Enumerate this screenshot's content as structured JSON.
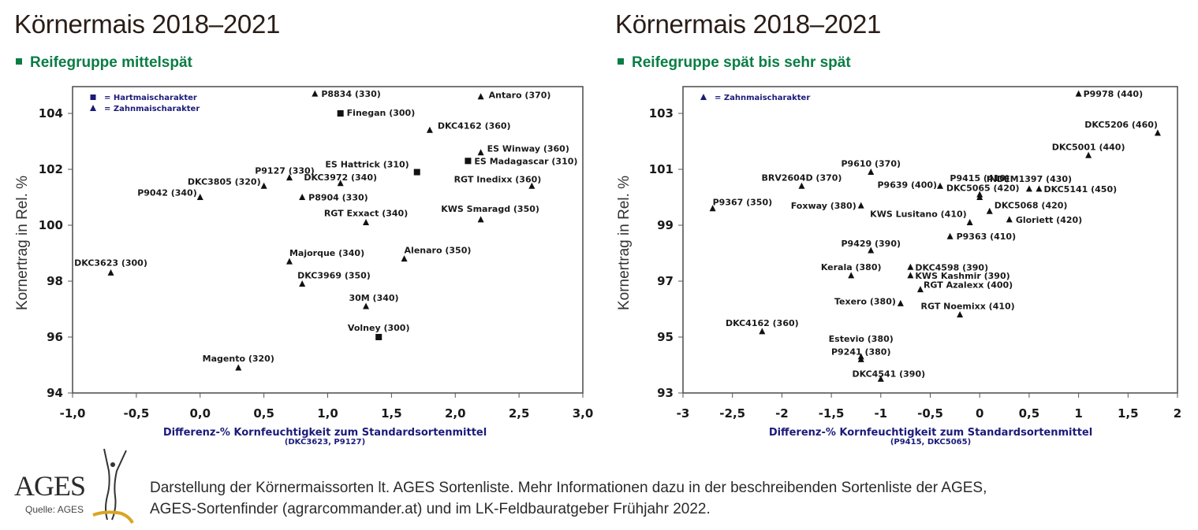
{
  "page": {
    "footer_lines": [
      "Darstellung der Körnermaissorten lt. AGES Sortenliste. Mehr Informationen dazu in der beschreibenden Sortenliste der AGES,",
      "AGES-Sortenfinder (agrarcommander.at) und im LK-Feldbauratgeber Frühjahr 2022."
    ],
    "logo": {
      "text": "AGES",
      "source": "Quelle: AGES"
    },
    "colors": {
      "title": "#2a1d17",
      "subtitle": "#0a7d45",
      "axis_label": "#1b1b7a",
      "marker": "#111111",
      "legend_marker": "#1b1b7a"
    }
  },
  "chart_data": [
    {
      "type": "scatter",
      "title": "Körnermais 2018–2021",
      "subtitle": "Reifegruppe mittelspät",
      "xlabel": "Differenz-% Kornfeuchtigkeit zum Standardsortenmittel",
      "xlabel_sub": "(DKC3623, P9127)",
      "ylabel": "Kornertrag in Rel. %",
      "xlim": [
        -1.0,
        3.0
      ],
      "ylim": [
        94,
        105
      ],
      "xticks": [
        -1.0,
        -0.5,
        0.0,
        0.5,
        1.0,
        1.5,
        2.0,
        2.5,
        3.0
      ],
      "xtick_labels": [
        "-1,0",
        "-0,5",
        "0,0",
        "0,5",
        "1,0",
        "1,5",
        "2,0",
        "2,5",
        "3,0"
      ],
      "yticks": [
        94,
        96,
        98,
        100,
        102,
        104
      ],
      "ytick_labels": [
        "94",
        "96",
        "98",
        "100",
        "102",
        "104"
      ],
      "grid": false,
      "legend_position": "top-left",
      "legend": [
        {
          "marker": "square",
          "label": "= Hartmaischarakter"
        },
        {
          "marker": "triangle",
          "label": "= Zahnmaischarakter"
        }
      ],
      "points": [
        {
          "label": "P8834 (330)",
          "x": 0.9,
          "y": 104.7,
          "marker": "triangle"
        },
        {
          "label": "Finegan (300)",
          "x": 1.1,
          "y": 104.0,
          "marker": "square"
        },
        {
          "label": "Antaro (370)",
          "x": 2.2,
          "y": 104.6,
          "marker": "triangle"
        },
        {
          "label": "DKC4162 (360)",
          "x": 1.8,
          "y": 103.4,
          "marker": "triangle"
        },
        {
          "label": "ES Winway (360)",
          "x": 2.2,
          "y": 102.6,
          "marker": "triangle"
        },
        {
          "label": "ES Madagascar (310)",
          "x": 2.1,
          "y": 102.3,
          "marker": "square"
        },
        {
          "label": "ES Hattrick (310)",
          "x": 1.7,
          "y": 101.9,
          "marker": "square"
        },
        {
          "label": "RGT Inedixx (360)",
          "x": 2.6,
          "y": 101.4,
          "marker": "triangle"
        },
        {
          "label": "P9127 (330)",
          "x": 0.7,
          "y": 101.7,
          "marker": "triangle"
        },
        {
          "label": "DKC3805 (320)",
          "x": 0.5,
          "y": 101.4,
          "marker": "triangle"
        },
        {
          "label": "DKC3972 (340)",
          "x": 1.1,
          "y": 101.5,
          "marker": "triangle"
        },
        {
          "label": "P9042 (340)",
          "x": 0.0,
          "y": 101.0,
          "marker": "triangle"
        },
        {
          "label": "P8904 (330)",
          "x": 0.8,
          "y": 101.0,
          "marker": "triangle"
        },
        {
          "label": "RGT Exxact (340)",
          "x": 1.3,
          "y": 100.1,
          "marker": "triangle"
        },
        {
          "label": "KWS Smaragd (350)",
          "x": 2.2,
          "y": 100.2,
          "marker": "triangle"
        },
        {
          "label": "DKC3623 (300)",
          "x": -0.7,
          "y": 98.3,
          "marker": "triangle"
        },
        {
          "label": "Majorque (340)",
          "x": 0.7,
          "y": 98.7,
          "marker": "triangle"
        },
        {
          "label": "Alenaro (350)",
          "x": 1.6,
          "y": 98.8,
          "marker": "triangle"
        },
        {
          "label": "DKC3969 (350)",
          "x": 0.8,
          "y": 97.9,
          "marker": "triangle"
        },
        {
          "label": "30M (340)",
          "x": 1.3,
          "y": 97.1,
          "marker": "triangle"
        },
        {
          "label": "Volney (300)",
          "x": 1.4,
          "y": 96.0,
          "marker": "square"
        },
        {
          "label": "Magento (320)",
          "x": 0.3,
          "y": 94.9,
          "marker": "triangle"
        }
      ]
    },
    {
      "type": "scatter",
      "title": "Körnermais 2018–2021",
      "subtitle": "Reifegruppe spät bis sehr spät",
      "xlabel": "Differenz-% Kornfeuchtigkeit zum Standardsortenmittel",
      "xlabel_sub": "(P9415, DKC5065)",
      "ylabel": "Kornertrag in Rel. %",
      "xlim": [
        -3,
        2
      ],
      "ylim": [
        93,
        104
      ],
      "xticks": [
        -3,
        -2.5,
        -2,
        -1.5,
        -1,
        -0.5,
        0,
        0.5,
        1,
        1.5,
        2
      ],
      "xtick_labels": [
        "-3",
        "-2,5",
        "-2",
        "-1,5",
        "-1",
        "-0,5",
        "0",
        "0,5",
        "1",
        "1,5",
        "2"
      ],
      "yticks": [
        93,
        95,
        97,
        99,
        101,
        103
      ],
      "ytick_labels": [
        "93",
        "95",
        "97",
        "99",
        "101",
        "103"
      ],
      "grid": false,
      "legend_position": "top-left",
      "legend": [
        {
          "marker": "triangle",
          "label": "= Zahnmaischarakter"
        }
      ],
      "points": [
        {
          "label": "P9978 (440)",
          "x": 1.0,
          "y": 103.7,
          "marker": "triangle"
        },
        {
          "label": "DKC5206 (460)",
          "x": 1.8,
          "y": 102.3,
          "marker": "triangle"
        },
        {
          "label": "DKC5001 (440)",
          "x": 1.1,
          "y": 101.5,
          "marker": "triangle"
        },
        {
          "label": "INDEM1397 (430)",
          "x": 0.5,
          "y": 100.3,
          "marker": "triangle"
        },
        {
          "label": "DKC5141 (450)",
          "x": 0.6,
          "y": 100.3,
          "marker": "triangle"
        },
        {
          "label": "P9415 (410)",
          "x": 0.0,
          "y": 100.1,
          "marker": "triangle"
        },
        {
          "label": "DKC5065 (420)",
          "x": 0.0,
          "y": 100.0,
          "marker": "triangle"
        },
        {
          "label": "P9639 (400)",
          "x": -0.4,
          "y": 100.4,
          "marker": "triangle"
        },
        {
          "label": "DKC5068 (420)",
          "x": 0.1,
          "y": 99.5,
          "marker": "triangle"
        },
        {
          "label": "Gloriett (420)",
          "x": 0.3,
          "y": 99.2,
          "marker": "triangle"
        },
        {
          "label": "KWS Lusitano (410)",
          "x": -0.1,
          "y": 99.1,
          "marker": "triangle"
        },
        {
          "label": "P9363 (410)",
          "x": -0.3,
          "y": 98.6,
          "marker": "triangle"
        },
        {
          "label": "P9610 (370)",
          "x": -1.1,
          "y": 100.9,
          "marker": "triangle"
        },
        {
          "label": "BRV2604D (370)",
          "x": -1.8,
          "y": 100.4,
          "marker": "triangle"
        },
        {
          "label": "P9367 (350)",
          "x": -2.7,
          "y": 99.6,
          "marker": "triangle"
        },
        {
          "label": "Foxway (380)",
          "x": -1.2,
          "y": 99.7,
          "marker": "triangle"
        },
        {
          "label": "P9429 (390)",
          "x": -1.1,
          "y": 98.1,
          "marker": "triangle"
        },
        {
          "label": "Kerala (380)",
          "x": -1.3,
          "y": 97.2,
          "marker": "triangle"
        },
        {
          "label": "DKC4598 (390)",
          "x": -0.7,
          "y": 97.5,
          "marker": "triangle"
        },
        {
          "label": "KWS Kashmir (390)",
          "x": -0.7,
          "y": 97.2,
          "marker": "triangle"
        },
        {
          "label": "RGT Azalexx (400)",
          "x": -0.6,
          "y": 96.7,
          "marker": "triangle"
        },
        {
          "label": "Texero (380)",
          "x": -0.8,
          "y": 96.2,
          "marker": "triangle"
        },
        {
          "label": "RGT Noemixx (410)",
          "x": -0.2,
          "y": 95.8,
          "marker": "triangle"
        },
        {
          "label": "DKC4162 (360)",
          "x": -2.2,
          "y": 95.2,
          "marker": "triangle"
        },
        {
          "label": "Estevio (380)",
          "x": -1.2,
          "y": 94.3,
          "marker": "triangle"
        },
        {
          "label": "P9241 (380)",
          "x": -1.2,
          "y": 94.2,
          "marker": "triangle"
        },
        {
          "label": "DKC4541 (390)",
          "x": -1.0,
          "y": 93.5,
          "marker": "triangle"
        }
      ]
    }
  ]
}
